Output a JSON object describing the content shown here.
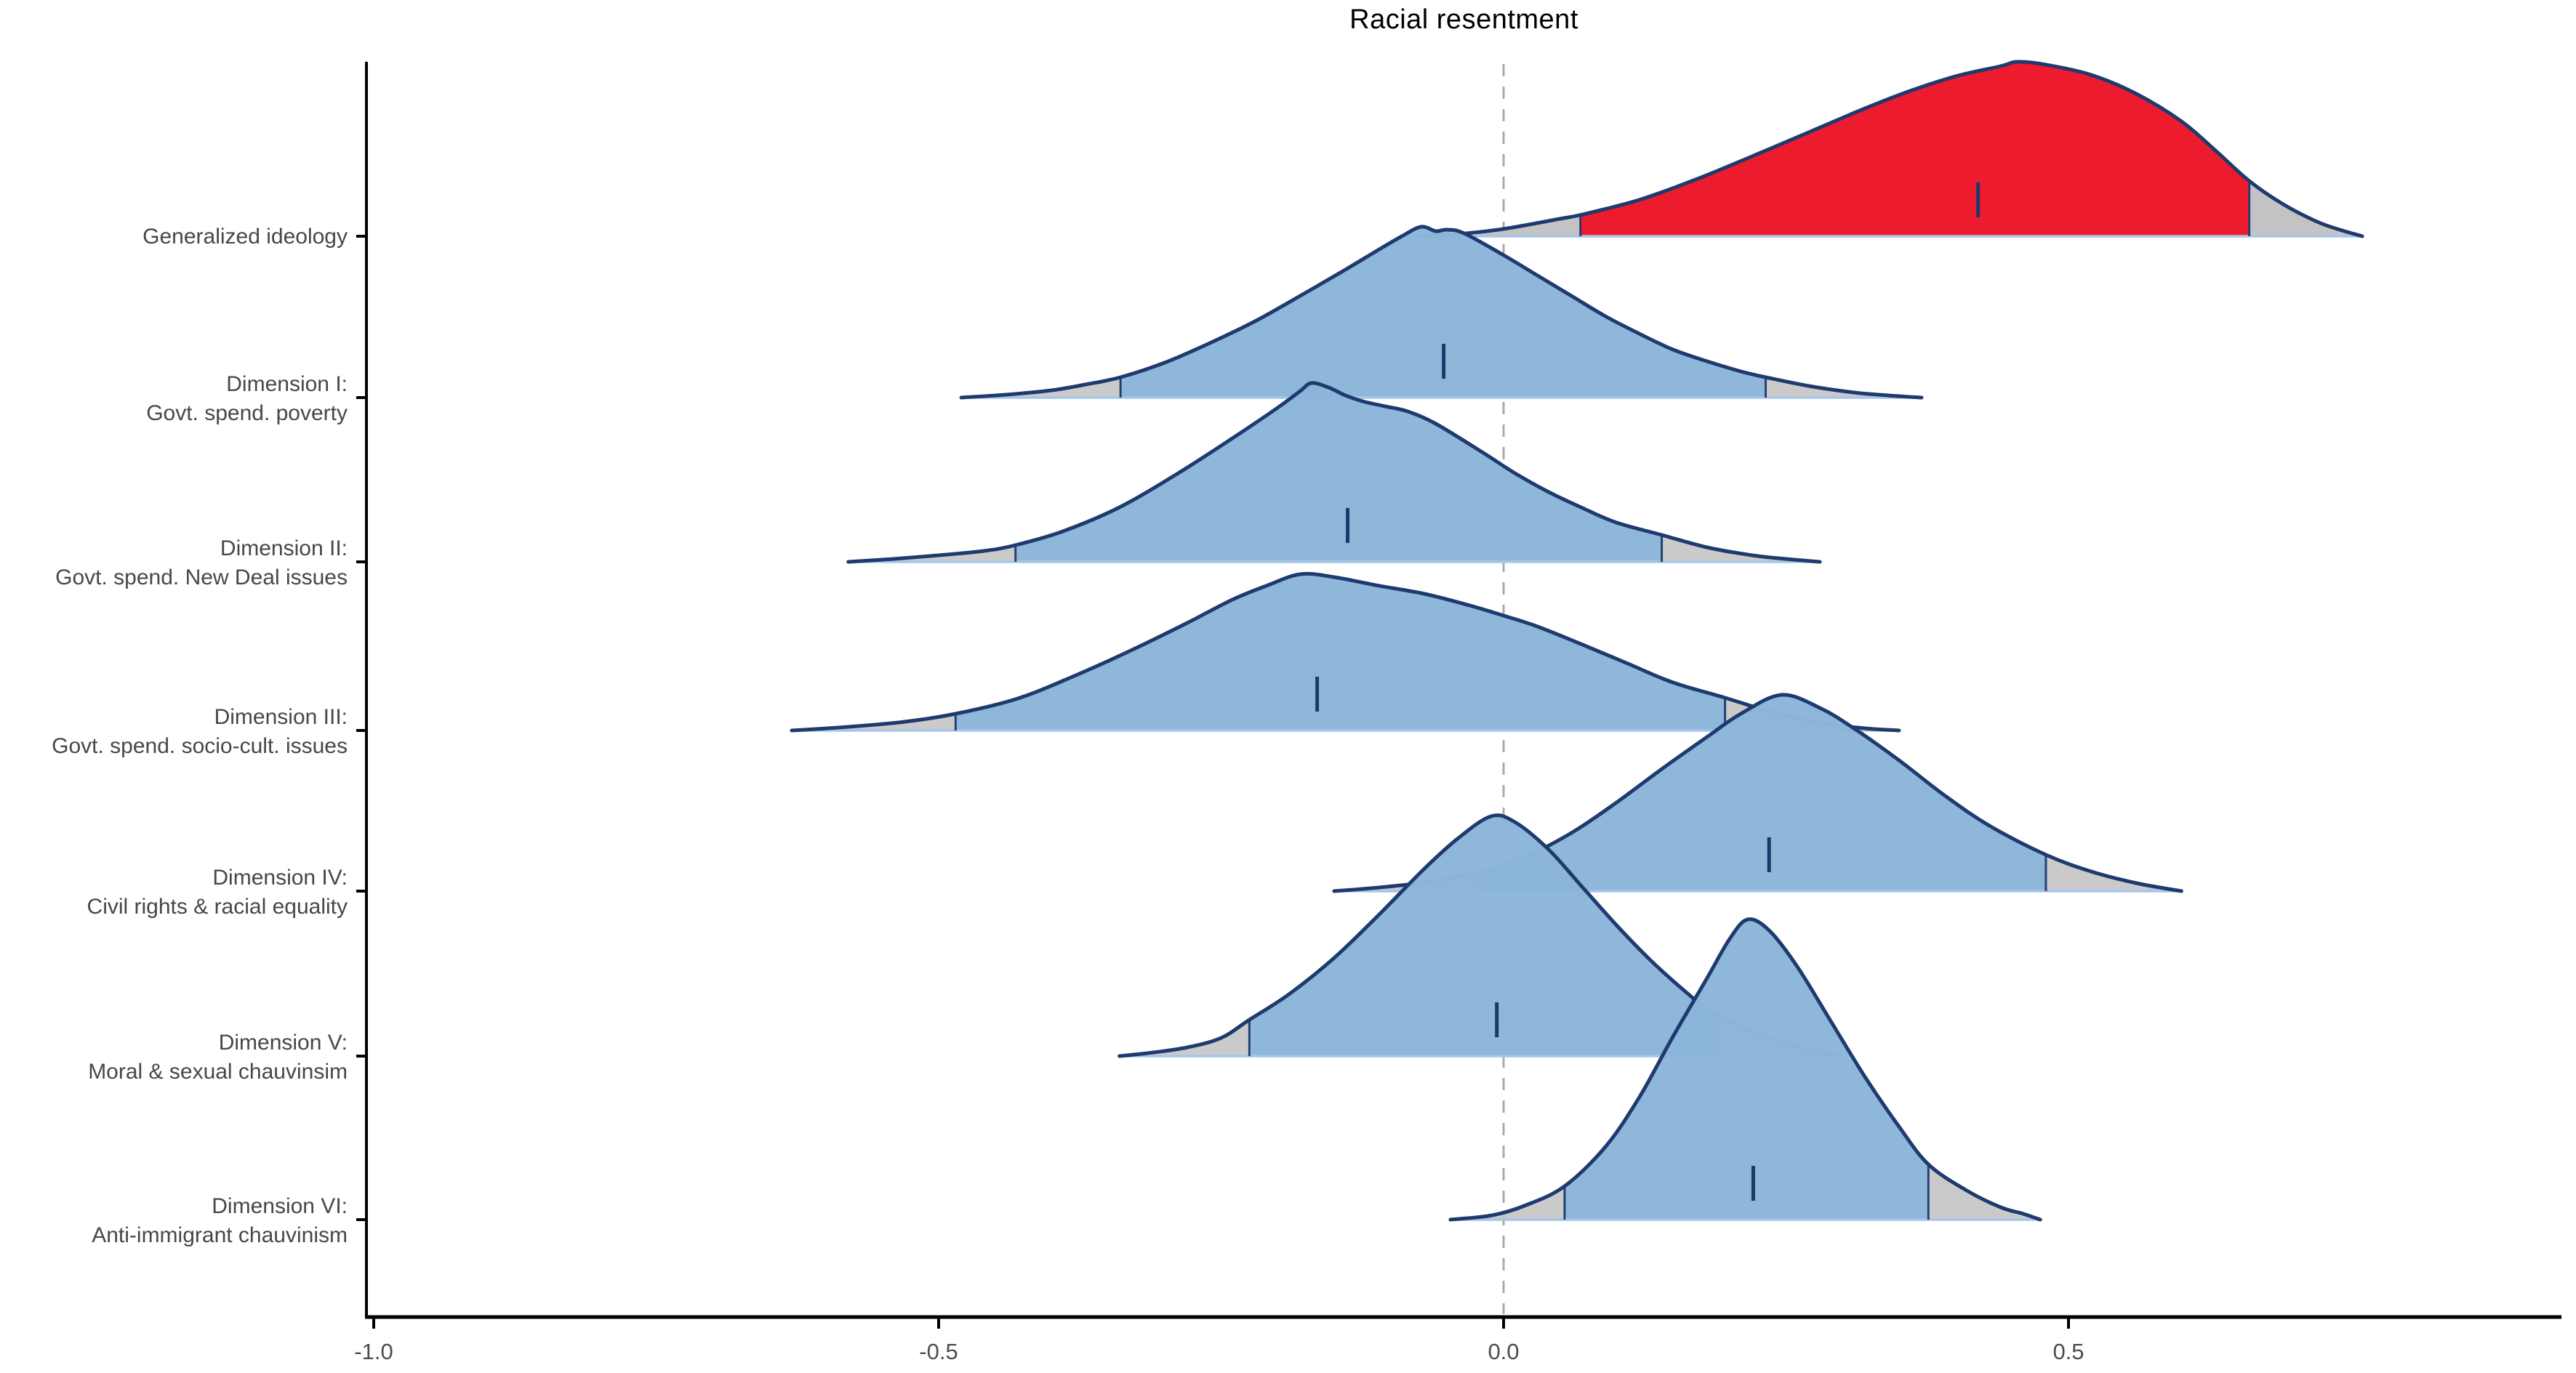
{
  "title": "Racial resentment",
  "colors": {
    "red_fill": "#EC1B2E",
    "blue_fill": "#85B4DC",
    "outline": "#1E3A6E",
    "median_tick": "#1B3A6B",
    "tail_gray": "#C3C3C3",
    "baseline_blue": "#A6C6E7",
    "zero_line_gray": "#ABABAB",
    "axis_black": "#000000",
    "tick_label_gray": "#4D4D4D",
    "row_label_gray": "#474747"
  },
  "chart_data": {
    "type": "area",
    "subtype": "ridgeline-density",
    "title": "Racial resentment",
    "xlabel": "",
    "ylabel": "",
    "x_range": [
      -1.0,
      0.95
    ],
    "grid": "off",
    "zero_reference_line": 0.0,
    "x_ticks": [
      {
        "value": -1.0,
        "label": "-1.0"
      },
      {
        "value": -0.5,
        "label": "-0.5"
      },
      {
        "value": 0.0,
        "label": "0.0"
      },
      {
        "value": 0.5,
        "label": "0.5"
      }
    ],
    "rows": [
      {
        "label": "Generalized ideology",
        "label_lines": [
          "Generalized ideology"
        ],
        "color_key": "red",
        "median": 0.42,
        "ci": [
          0.068,
          0.66
        ],
        "range": [
          -0.075,
          0.76
        ],
        "curve": [
          [
            -0.075,
            0
          ],
          [
            -0.04,
            3
          ],
          [
            0.0,
            10
          ],
          [
            0.05,
            24
          ],
          [
            0.07,
            30
          ],
          [
            0.12,
            50
          ],
          [
            0.17,
            78
          ],
          [
            0.22,
            110
          ],
          [
            0.27,
            143
          ],
          [
            0.32,
            176
          ],
          [
            0.36,
            200
          ],
          [
            0.4,
            220
          ],
          [
            0.44,
            234
          ],
          [
            0.455,
            240
          ],
          [
            0.48,
            236
          ],
          [
            0.52,
            222
          ],
          [
            0.56,
            196
          ],
          [
            0.6,
            158
          ],
          [
            0.63,
            118
          ],
          [
            0.66,
            76
          ],
          [
            0.69,
            44
          ],
          [
            0.72,
            20
          ],
          [
            0.74,
            9
          ],
          [
            0.76,
            0
          ]
        ]
      },
      {
        "label": "Dimension I: Govt. spend. poverty",
        "label_lines": [
          "Dimension I:",
          "Govt. spend. poverty"
        ],
        "color_key": "blue",
        "median": -0.053,
        "ci": [
          -0.339,
          0.232
        ],
        "range": [
          -0.48,
          0.37
        ],
        "curve": [
          [
            -0.48,
            0
          ],
          [
            -0.44,
            4
          ],
          [
            -0.4,
            10
          ],
          [
            -0.37,
            18
          ],
          [
            -0.339,
            28
          ],
          [
            -0.3,
            48
          ],
          [
            -0.26,
            75
          ],
          [
            -0.22,
            105
          ],
          [
            -0.18,
            140
          ],
          [
            -0.14,
            176
          ],
          [
            -0.11,
            204
          ],
          [
            -0.09,
            222
          ],
          [
            -0.073,
            235
          ],
          [
            -0.06,
            229
          ],
          [
            -0.05,
            231
          ],
          [
            -0.035,
            226
          ],
          [
            0.0,
            196
          ],
          [
            0.03,
            168
          ],
          [
            0.06,
            140
          ],
          [
            0.09,
            112
          ],
          [
            0.12,
            88
          ],
          [
            0.15,
            66
          ],
          [
            0.18,
            50
          ],
          [
            0.21,
            36
          ],
          [
            0.232,
            28
          ],
          [
            0.27,
            16
          ],
          [
            0.31,
            7
          ],
          [
            0.34,
            3
          ],
          [
            0.37,
            0
          ]
        ]
      },
      {
        "label": "Dimension II: Govt. spend. New Deal issues",
        "label_lines": [
          "Dimension II:",
          "Govt. spend. New Deal issues"
        ],
        "color_key": "blue",
        "median": -0.138,
        "ci": [
          -0.432,
          0.14
        ],
        "range": [
          -0.58,
          0.28
        ],
        "curve": [
          [
            -0.58,
            0
          ],
          [
            -0.54,
            4
          ],
          [
            -0.5,
            9
          ],
          [
            -0.46,
            15
          ],
          [
            -0.432,
            23
          ],
          [
            -0.39,
            42
          ],
          [
            -0.34,
            75
          ],
          [
            -0.29,
            120
          ],
          [
            -0.24,
            170
          ],
          [
            -0.2,
            212
          ],
          [
            -0.18,
            235
          ],
          [
            -0.17,
            246
          ],
          [
            -0.155,
            240
          ],
          [
            -0.14,
            229
          ],
          [
            -0.125,
            221
          ],
          [
            -0.105,
            214
          ],
          [
            -0.085,
            207
          ],
          [
            -0.06,
            190
          ],
          [
            -0.02,
            152
          ],
          [
            0.01,
            122
          ],
          [
            0.04,
            96
          ],
          [
            0.07,
            74
          ],
          [
            0.1,
            54
          ],
          [
            0.14,
            37
          ],
          [
            0.18,
            20
          ],
          [
            0.22,
            9
          ],
          [
            0.25,
            4
          ],
          [
            0.28,
            0
          ]
        ]
      },
      {
        "label": "Dimension III: Govt. spend. socio-cult. issues",
        "label_lines": [
          "Dimension III:",
          "Govt. spend. socio-cult. issues"
        ],
        "color_key": "blue",
        "median": -0.165,
        "ci": [
          -0.485,
          0.196
        ],
        "range": [
          -0.63,
          0.35
        ],
        "curve": [
          [
            -0.63,
            0
          ],
          [
            -0.58,
            5
          ],
          [
            -0.53,
            12
          ],
          [
            -0.485,
            23
          ],
          [
            -0.43,
            44
          ],
          [
            -0.38,
            75
          ],
          [
            -0.33,
            110
          ],
          [
            -0.28,
            148
          ],
          [
            -0.24,
            180
          ],
          [
            -0.21,
            199
          ],
          [
            -0.18,
            215
          ],
          [
            -0.15,
            211
          ],
          [
            -0.11,
            199
          ],
          [
            -0.07,
            188
          ],
          [
            -0.03,
            172
          ],
          [
            0.0,
            158
          ],
          [
            0.03,
            143
          ],
          [
            0.07,
            118
          ],
          [
            0.11,
            92
          ],
          [
            0.15,
            66
          ],
          [
            0.196,
            45
          ],
          [
            0.24,
            24
          ],
          [
            0.28,
            10
          ],
          [
            0.32,
            3
          ],
          [
            0.35,
            0
          ]
        ]
      },
      {
        "label": "Dimension IV: Civil rights & racial equality",
        "label_lines": [
          "Dimension IV:",
          "Civil rights & racial equality"
        ],
        "color_key": "blue",
        "median": 0.235,
        "ci": [
          -0.021,
          0.48
        ],
        "range": [
          -0.15,
          0.6
        ],
        "curve": [
          [
            -0.15,
            0
          ],
          [
            -0.11,
            5
          ],
          [
            -0.07,
            12
          ],
          [
            -0.021,
            26
          ],
          [
            0.02,
            48
          ],
          [
            0.06,
            80
          ],
          [
            0.1,
            122
          ],
          [
            0.14,
            168
          ],
          [
            0.18,
            212
          ],
          [
            0.21,
            244
          ],
          [
            0.246,
            270
          ],
          [
            0.28,
            252
          ],
          [
            0.31,
            224
          ],
          [
            0.35,
            180
          ],
          [
            0.39,
            132
          ],
          [
            0.43,
            90
          ],
          [
            0.48,
            50
          ],
          [
            0.52,
            27
          ],
          [
            0.56,
            11
          ],
          [
            0.6,
            0
          ]
        ]
      },
      {
        "label": "Dimension V: Moral & sexual chauvinsim",
        "label_lines": [
          "Dimension V:",
          "Moral & sexual chauvinsim"
        ],
        "color_key": "blue",
        "median": -0.006,
        "ci": [
          -0.225,
          0.185
        ],
        "range": [
          -0.34,
          0.3
        ],
        "curve": [
          [
            -0.34,
            0
          ],
          [
            -0.31,
            5
          ],
          [
            -0.28,
            12
          ],
          [
            -0.25,
            25
          ],
          [
            -0.225,
            50
          ],
          [
            -0.19,
            85
          ],
          [
            -0.15,
            135
          ],
          [
            -0.11,
            195
          ],
          [
            -0.07,
            258
          ],
          [
            -0.04,
            300
          ],
          [
            -0.011,
            330
          ],
          [
            0.01,
            322
          ],
          [
            0.04,
            284
          ],
          [
            0.07,
            232
          ],
          [
            0.1,
            180
          ],
          [
            0.13,
            132
          ],
          [
            0.16,
            90
          ],
          [
            0.185,
            60
          ],
          [
            0.22,
            34
          ],
          [
            0.25,
            17
          ],
          [
            0.28,
            6
          ],
          [
            0.3,
            0
          ]
        ]
      },
      {
        "label": "Dimension VI: Anti-immigrant chauvinism",
        "label_lines": [
          "Dimension VI:",
          "Anti-immigrant chauvinism"
        ],
        "color_key": "blue",
        "median": 0.221,
        "ci": [
          0.054,
          0.376
        ],
        "range": [
          -0.047,
          0.475
        ],
        "curve": [
          [
            -0.047,
            0
          ],
          [
            -0.01,
            6
          ],
          [
            0.02,
            20
          ],
          [
            0.054,
            46
          ],
          [
            0.09,
            100
          ],
          [
            0.12,
            168
          ],
          [
            0.15,
            252
          ],
          [
            0.18,
            332
          ],
          [
            0.2,
            386
          ],
          [
            0.216,
            413
          ],
          [
            0.235,
            398
          ],
          [
            0.26,
            348
          ],
          [
            0.29,
            272
          ],
          [
            0.32,
            196
          ],
          [
            0.35,
            128
          ],
          [
            0.376,
            76
          ],
          [
            0.41,
            40
          ],
          [
            0.44,
            17
          ],
          [
            0.46,
            8
          ],
          [
            0.475,
            0
          ]
        ]
      }
    ]
  }
}
